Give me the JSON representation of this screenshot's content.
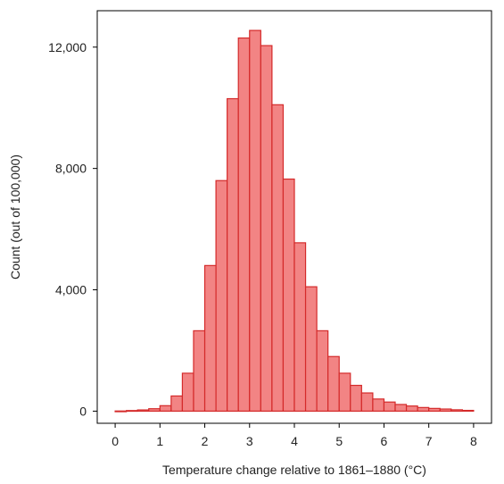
{
  "chart_data": {
    "type": "bar",
    "title": "",
    "xlabel": "Temperature change relative to 1861–1880 (°C)",
    "ylabel": "Count (out of 100,000)",
    "xlim": [
      -0.4,
      8.4
    ],
    "ylim": [
      -400,
      13200
    ],
    "bin_width": 0.25,
    "bins_start": [
      0.0,
      0.25,
      0.5,
      0.75,
      1.0,
      1.25,
      1.5,
      1.75,
      2.0,
      2.25,
      2.5,
      2.75,
      3.0,
      3.25,
      3.5,
      3.75,
      4.0,
      4.25,
      4.5,
      4.75,
      5.0,
      5.25,
      5.5,
      5.75,
      6.0,
      6.25,
      6.5,
      6.75,
      7.0,
      7.25,
      7.5,
      7.75
    ],
    "values": [
      5,
      20,
      40,
      80,
      180,
      500,
      1250,
      2650,
      4800,
      7600,
      10300,
      12300,
      12550,
      12050,
      10100,
      7650,
      5550,
      4100,
      2650,
      1800,
      1250,
      850,
      600,
      400,
      300,
      220,
      170,
      120,
      90,
      70,
      45,
      25
    ],
    "x_ticks": [
      "0",
      "1",
      "2",
      "3",
      "4",
      "5",
      "6",
      "7",
      "8"
    ],
    "y_ticks": [
      "0",
      "4,000",
      "8,000",
      "12,000"
    ],
    "bar_fill": "#f28484",
    "bar_edge": "#d42a2a",
    "grid": false,
    "legend": "none"
  }
}
